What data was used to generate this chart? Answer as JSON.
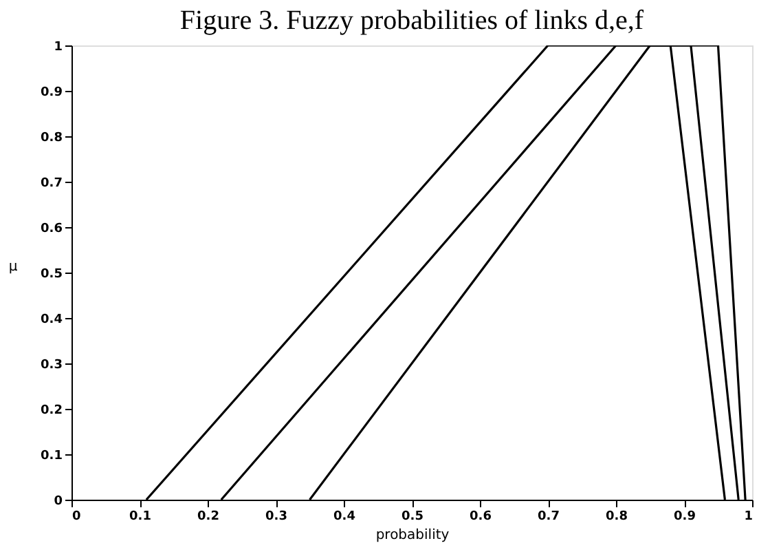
{
  "chart_data": {
    "type": "line",
    "title": "Figure 3.  Fuzzy probabilities of links d,e,f",
    "xlabel": "probability",
    "ylabel": "μ",
    "series": [
      {
        "color": "#000000",
        "x": [
          0.11,
          0.7,
          0.88,
          0.96
        ],
        "values": [
          0,
          1,
          1,
          0
        ]
      },
      {
        "color": "#000000",
        "x": [
          0.22,
          0.8,
          0.91,
          0.98
        ],
        "values": [
          0,
          1,
          1,
          0
        ]
      },
      {
        "color": "#000000",
        "x": [
          0.35,
          0.85,
          0.95,
          0.99
        ],
        "values": [
          0,
          1,
          1,
          0
        ]
      }
    ],
    "xlim": [
      0,
      1
    ],
    "xticks": [
      0,
      0.1,
      0.2,
      0.3,
      0.4,
      0.5,
      0.6,
      0.7,
      0.8,
      0.9,
      1
    ],
    "ylim": [
      0,
      1
    ],
    "yticks": [
      0,
      0.1,
      0.2,
      0.3,
      0.4,
      0.5,
      0.6,
      0.7,
      0.8,
      0.9,
      1
    ],
    "grid": false,
    "legend": false,
    "marker": "none",
    "line_style": "solid"
  }
}
